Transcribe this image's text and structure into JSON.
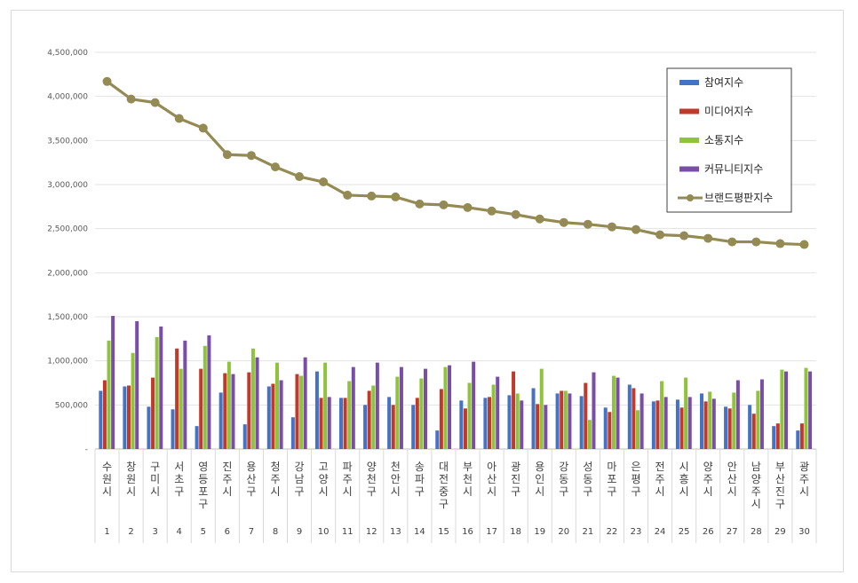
{
  "chart_data": {
    "type": "bar",
    "title": "",
    "xlabel": "",
    "ylabel": "",
    "ylim": [
      0,
      4500000
    ],
    "yticks": [
      "-",
      "500,000",
      "1,000,000",
      "1,500,000",
      "2,000,000",
      "2,500,000",
      "3,000,000",
      "3,500,000",
      "4,000,000",
      "4,500,000"
    ],
    "grid": true,
    "legend_position": "top-right",
    "categories": [
      "수원시",
      "창원시",
      "구미시",
      "서초구",
      "영등포구",
      "진주시",
      "용산구",
      "청주시",
      "강남구",
      "고양시",
      "파주시",
      "양천구",
      "천안시",
      "송파구",
      "대전중구",
      "부천시",
      "아산시",
      "광진구",
      "용인시",
      "강동구",
      "성동구",
      "마포구",
      "은평구",
      "전주시",
      "시흥시",
      "양주시",
      "안산시",
      "남양주시",
      "부산진구",
      "광주시"
    ],
    "indices": [
      "1",
      "2",
      "3",
      "4",
      "5",
      "6",
      "7",
      "8",
      "9",
      "10",
      "11",
      "12",
      "13",
      "14",
      "15",
      "16",
      "17",
      "18",
      "19",
      "20",
      "21",
      "22",
      "23",
      "24",
      "25",
      "26",
      "27",
      "28",
      "29",
      "30"
    ],
    "series": [
      {
        "name": "참여지수",
        "kind": "bar",
        "color": "#4472c4",
        "values": [
          660000,
          710000,
          480000,
          450000,
          260000,
          640000,
          280000,
          710000,
          360000,
          880000,
          580000,
          500000,
          590000,
          500000,
          210000,
          550000,
          580000,
          610000,
          690000,
          630000,
          600000,
          470000,
          730000,
          540000,
          560000,
          630000,
          480000,
          500000,
          260000,
          210000
        ]
      },
      {
        "name": "미디어지수",
        "kind": "bar",
        "color": "#c0392b",
        "values": [
          780000,
          720000,
          810000,
          1140000,
          910000,
          860000,
          870000,
          740000,
          850000,
          580000,
          580000,
          660000,
          500000,
          580000,
          680000,
          460000,
          590000,
          880000,
          510000,
          660000,
          750000,
          420000,
          690000,
          550000,
          470000,
          540000,
          460000,
          400000,
          290000,
          290000
        ]
      },
      {
        "name": "소통지수",
        "kind": "bar",
        "color": "#8fc33b",
        "values": [
          1230000,
          1090000,
          1270000,
          910000,
          1170000,
          990000,
          1140000,
          980000,
          830000,
          980000,
          770000,
          720000,
          820000,
          800000,
          930000,
          750000,
          730000,
          630000,
          910000,
          660000,
          330000,
          830000,
          440000,
          770000,
          810000,
          650000,
          640000,
          660000,
          900000,
          920000
        ]
      },
      {
        "name": "커뮤니티지수",
        "kind": "bar",
        "color": "#7a4ea6",
        "values": [
          1510000,
          1450000,
          1390000,
          1230000,
          1290000,
          850000,
          1040000,
          780000,
          1040000,
          590000,
          930000,
          980000,
          930000,
          910000,
          950000,
          990000,
          820000,
          550000,
          500000,
          630000,
          870000,
          810000,
          630000,
          590000,
          590000,
          570000,
          780000,
          790000,
          880000,
          880000
        ]
      },
      {
        "name": "브랜드평판지수",
        "kind": "line",
        "color": "#948a54",
        "values": [
          4170000,
          3970000,
          3930000,
          3750000,
          3640000,
          3340000,
          3330000,
          3200000,
          3090000,
          3030000,
          2880000,
          2870000,
          2860000,
          2780000,
          2770000,
          2740000,
          2700000,
          2660000,
          2610000,
          2570000,
          2550000,
          2520000,
          2490000,
          2430000,
          2420000,
          2390000,
          2350000,
          2350000,
          2330000,
          2320000
        ]
      }
    ]
  }
}
